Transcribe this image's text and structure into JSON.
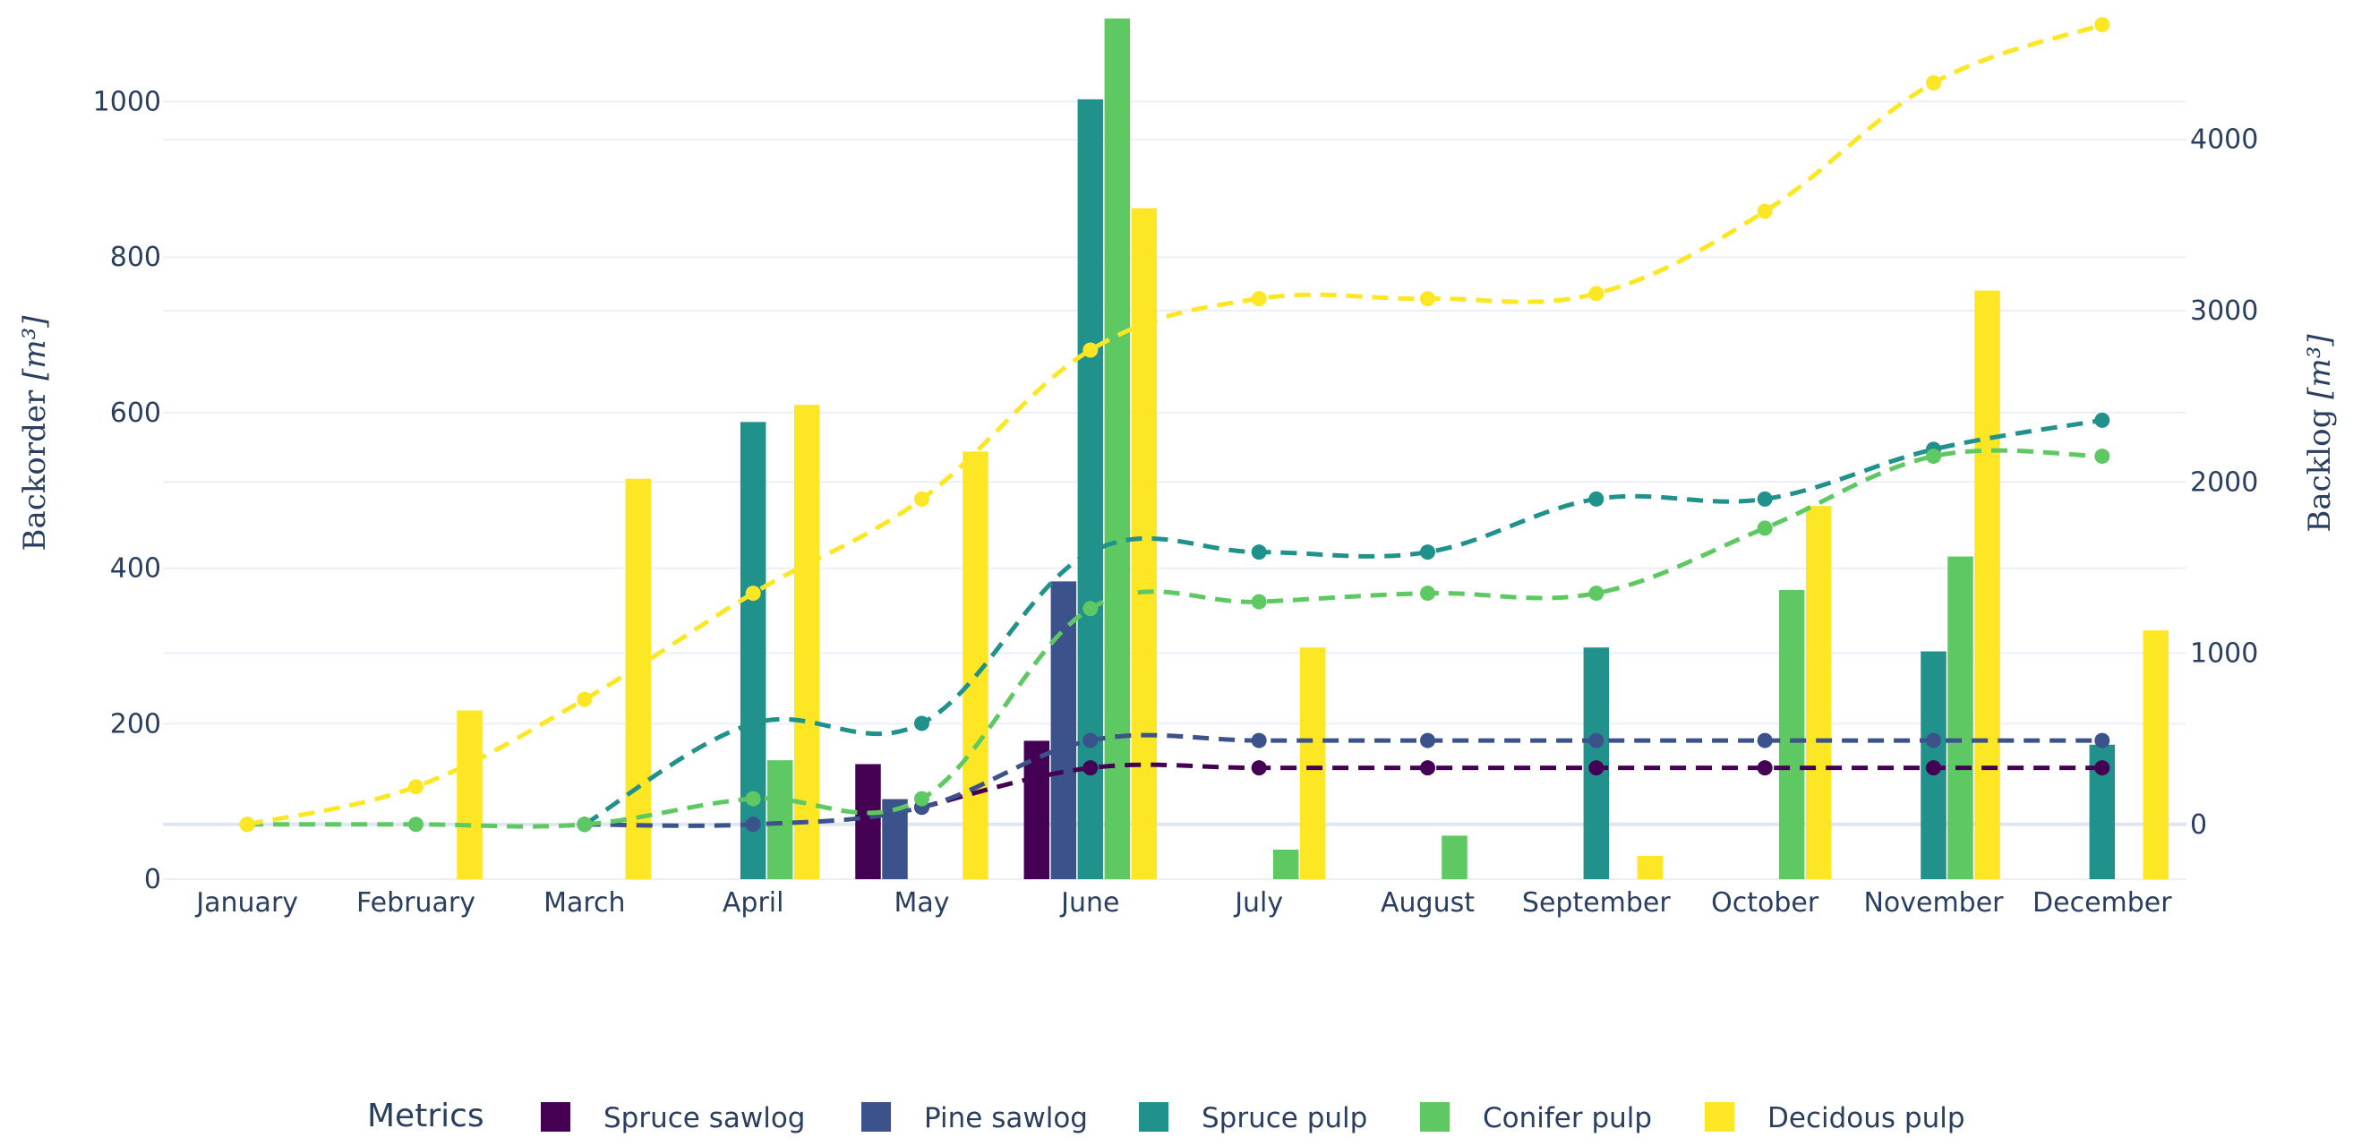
{
  "chart_data": {
    "type": "bar+line",
    "categories": [
      "January",
      "February",
      "March",
      "April",
      "May",
      "June",
      "July",
      "August",
      "September",
      "October",
      "November",
      "December"
    ],
    "y_left": {
      "label": "Backorder",
      "unit": "[m³]",
      "range": [
        0,
        1110
      ],
      "ticks": [
        0,
        200,
        400,
        600,
        800,
        1000
      ],
      "tick_labels": [
        "0",
        "200",
        "400",
        "600",
        "800",
        "1000"
      ]
    },
    "y_right": {
      "label": "Backlog",
      "unit": "[m³]",
      "range": [
        -320,
        4720
      ],
      "ticks": [
        0,
        1000,
        2000,
        3000,
        4000
      ],
      "tick_labels": [
        "0",
        "1000",
        "2000",
        "3000",
        "4000"
      ]
    },
    "legend_title": "Metrics",
    "series": [
      {
        "name": "Spruce sawlog",
        "color": "#440154",
        "backorder": [
          0,
          0,
          0,
          0,
          148,
          178,
          0,
          0,
          0,
          0,
          0,
          0
        ],
        "backlog": [
          null,
          null,
          null,
          null,
          100,
          330,
          330,
          330,
          330,
          330,
          330,
          330
        ]
      },
      {
        "name": "Pine sawlog",
        "color": "#3b528b",
        "backorder": [
          0,
          0,
          0,
          0,
          103,
          383,
          0,
          0,
          0,
          0,
          0,
          0
        ],
        "backlog": [
          null,
          null,
          0,
          0,
          100,
          490,
          490,
          490,
          490,
          490,
          490,
          490
        ]
      },
      {
        "name": "Spruce pulp",
        "color": "#21918c",
        "backorder": [
          0,
          0,
          0,
          588,
          0,
          1003,
          0,
          0,
          298,
          0,
          293,
          173
        ],
        "backlog": [
          null,
          null,
          0,
          590,
          590,
          1590,
          1590,
          1590,
          1900,
          1900,
          2190,
          2360
        ]
      },
      {
        "name": "Conifer pulp",
        "color": "#5ec962",
        "backorder": [
          0,
          0,
          0,
          153,
          0,
          1107,
          38,
          56,
          0,
          372,
          415,
          0
        ],
        "backlog": [
          0,
          0,
          0,
          150,
          150,
          1260,
          1300,
          1350,
          1350,
          1730,
          2150,
          2150
        ]
      },
      {
        "name": "Decidous pulp",
        "color": "#fde725",
        "backorder": [
          0,
          217,
          515,
          610,
          550,
          863,
          298,
          0,
          30,
          480,
          757,
          320
        ],
        "backlog": [
          0,
          220,
          730,
          1350,
          1900,
          2770,
          3070,
          3070,
          3100,
          3580,
          4330,
          4670
        ]
      }
    ]
  }
}
